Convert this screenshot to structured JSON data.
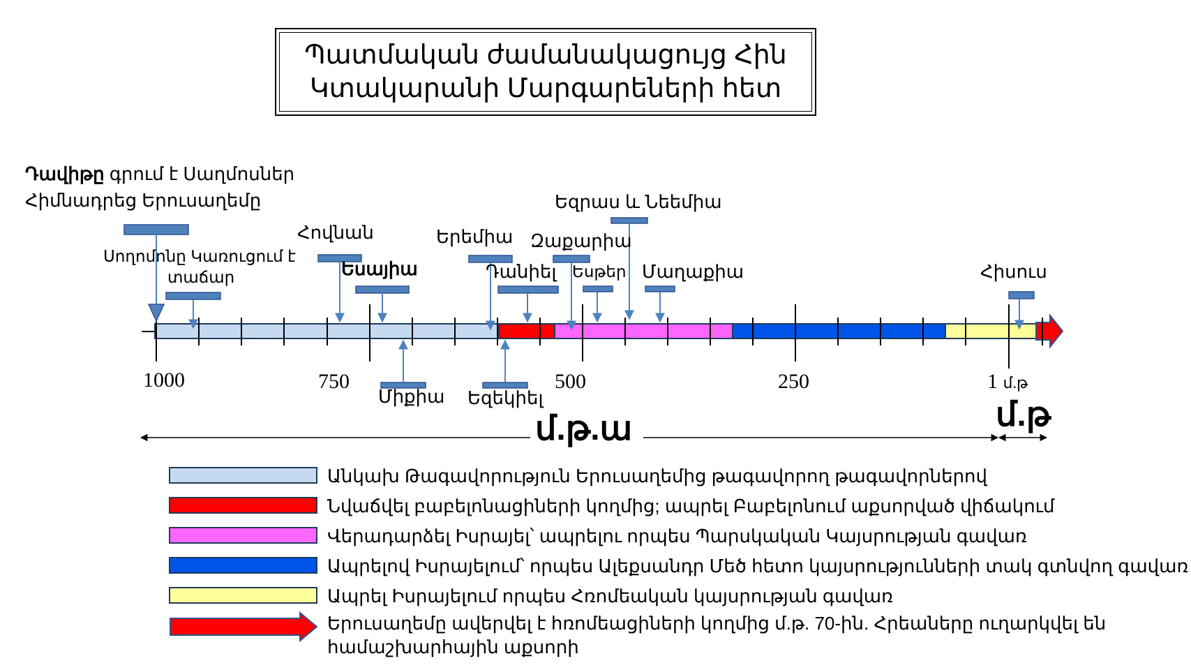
{
  "title": {
    "line1": "Պատմական ժամանակացույց Հին",
    "line2": "Կտակարանի Մարգարեների հետ"
  },
  "events": {
    "david_bold": "Դավիթը",
    "david_rest": " գրում է Սաղմոսներ",
    "david_line2": "Հիմնադրեց Երուսաղեմը",
    "solomon_line1": "Սողոմոնը Կառուցում է",
    "solomon_line2": "տաճար",
    "jonah": "Հովնան",
    "isaiah": "Եսայիա",
    "micah": "Միքիա",
    "jeremiah": "Երեմիա",
    "ezekiel": "Եզեկիել",
    "daniel": "Դանիել",
    "zechariah": "Զաքարիա",
    "esther": "Եսթեր",
    "ezra_nehemiah": "Եզրաս և Նեեմիա",
    "malachi": "Մաղաքիա",
    "jesus": "Հիսուս"
  },
  "axis": {
    "labels": [
      "1000",
      "750",
      "500",
      "250",
      "1"
    ],
    "ad_small": "մ.թ",
    "bc_label": "մ.թ.ա",
    "ad_label": "մ.թ"
  },
  "colors": {
    "light_blue": "#c5d9f1",
    "red": "#ff0000",
    "pink": "#ff66ff",
    "blue": "#0055e8",
    "yellow": "#ffff99",
    "marker": "#4f81bd"
  },
  "legend": [
    {
      "color": "#c5d9f1",
      "text": "Անկախ Թագավորություն Երուսաղեմից թագավորող թագավորներով"
    },
    {
      "color": "#ff0000",
      "text": "Նվաճվել բաբելոնացիների կողմից; ապրել Բաբելոնում աքսորված վիճակում"
    },
    {
      "color": "#ff66ff",
      "text": "Վերադարձել  Իսրայել՝ ապրելու որպես Պարսկական Կայսրության գավառ"
    },
    {
      "color": "#0055e8",
      "text": "Ապրելով Իսրայելում՝ որպես Ալեքսանդր Մեծ հետո կայսրությունների տակ գտնվող գավառ"
    },
    {
      "color": "#ffff99",
      "text": "Ապրել Իսրայելում որպես Հռոմեական կայսրության գավառ"
    }
  ],
  "legend_arrow": {
    "icon": "red-arrow-icon",
    "line1": "Երուսաղեմը ավերվել է հռոմեացիների կողմից մ.թ. 70-ին. Հրեաները ուղարկվել են",
    "line2": "համաշխարհային աքսորի"
  }
}
